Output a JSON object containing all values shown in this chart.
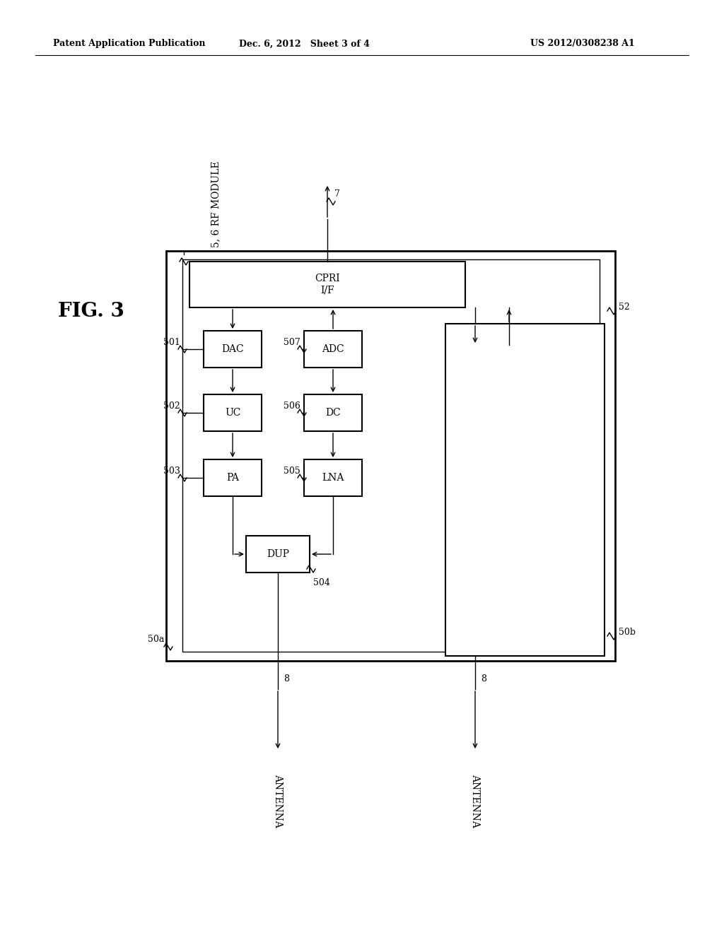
{
  "bg_color": "#ffffff",
  "header_left": "Patent Application Publication",
  "header_center": "Dec. 6, 2012   Sheet 3 of 4",
  "header_right": "US 2012/0308238 A1",
  "fig_label": "FIG. 3",
  "rf_module_label": "5, 6 RF MODULE"
}
